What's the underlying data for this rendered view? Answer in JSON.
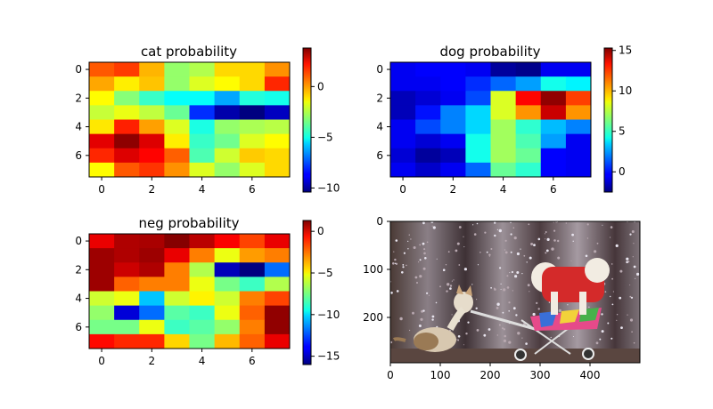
{
  "chart_data": [
    {
      "type": "heatmap",
      "title": "cat probability",
      "colormap": "jet",
      "x_ticks": [
        0,
        2,
        4,
        6
      ],
      "y_ticks": [
        0,
        2,
        4,
        6
      ],
      "colorbar_ticks": [
        0,
        -5,
        -10
      ],
      "vmin": -10.4,
      "vmax": 3.8,
      "values": [
        [
          0.8,
          1.2,
          -0.5,
          -3.0,
          -2.6,
          -1.0,
          -1.0,
          0.0
        ],
        [
          -0.3,
          -1.3,
          -0.7,
          -3.0,
          -2.0,
          -1.5,
          -1.0,
          1.5
        ],
        [
          -1.5,
          -3.2,
          -4.3,
          -5.0,
          -5.0,
          -6.3,
          -4.6,
          -4.8
        ],
        [
          -2.3,
          -1.8,
          -2.4,
          -3.6,
          -8.0,
          -9.8,
          -10.4,
          -9.5
        ],
        [
          -1.2,
          1.6,
          -0.2,
          -2.0,
          -4.7,
          -3.0,
          -2.7,
          -2.5
        ],
        [
          2.4,
          3.6,
          2.5,
          -1.3,
          -4.3,
          -3.5,
          -2.0,
          -1.5
        ],
        [
          1.5,
          2.5,
          2.0,
          0.7,
          -4.0,
          -2.2,
          -0.8,
          -1.0
        ],
        [
          -1.5,
          0.8,
          1.3,
          0.0,
          -2.0,
          -3.0,
          -2.0,
          -1.0
        ]
      ]
    },
    {
      "type": "heatmap",
      "title": "dog probability",
      "colormap": "jet",
      "x_ticks": [
        0,
        2,
        4,
        6
      ],
      "y_ticks": [
        0,
        2,
        4,
        6
      ],
      "colorbar_ticks": [
        15,
        10,
        5,
        0
      ],
      "vmin": -2.5,
      "vmax": 15.3,
      "values": [
        [
          -0.5,
          -0.3,
          -0.3,
          -0.5,
          -2.0,
          -2.3,
          -0.5,
          -0.5
        ],
        [
          -0.5,
          -0.5,
          -0.3,
          0.5,
          1.5,
          2.5,
          4.5,
          4.0
        ],
        [
          -1.5,
          -1.0,
          -0.5,
          1.0,
          8.0,
          13.0,
          15.0,
          12.0
        ],
        [
          -1.5,
          0.0,
          2.0,
          3.5,
          8.0,
          10.5,
          14.0,
          10.5
        ],
        [
          -0.5,
          1.0,
          2.0,
          3.5,
          7.0,
          5.0,
          3.0,
          2.0
        ],
        [
          -0.5,
          -1.0,
          -0.5,
          4.5,
          7.0,
          5.5,
          2.5,
          -0.5
        ],
        [
          -1.0,
          -2.0,
          -1.5,
          4.5,
          7.0,
          6.0,
          -0.3,
          -0.5
        ],
        [
          -0.5,
          -1.2,
          -0.5,
          1.5,
          6.0,
          5.0,
          -0.3,
          -0.5
        ]
      ]
    },
    {
      "type": "heatmap",
      "title": "neg probability",
      "colormap": "jet",
      "x_ticks": [
        0,
        2,
        4,
        6
      ],
      "y_ticks": [
        0,
        2,
        4,
        6
      ],
      "colorbar_ticks": [
        0,
        -5,
        -10,
        -15
      ],
      "vmin": -16.0,
      "vmax": 1.3,
      "values": [
        [
          -0.5,
          0.5,
          0.6,
          1.2,
          0.3,
          -0.8,
          -2.0,
          -0.5
        ],
        [
          0.8,
          0.5,
          0.8,
          -0.5,
          -3.0,
          -5.5,
          -3.5,
          -3.0
        ],
        [
          0.8,
          0.0,
          0.5,
          -3.0,
          -6.5,
          -15.0,
          -16.0,
          -12.0
        ],
        [
          0.8,
          -2.5,
          -3.0,
          -3.0,
          -5.5,
          -7.5,
          -8.5,
          -6.5
        ],
        [
          -6.0,
          -5.5,
          -10.5,
          -6.0,
          -5.0,
          -6.0,
          -3.0,
          -2.0
        ],
        [
          -7.0,
          -14.5,
          -12.0,
          -8.0,
          -8.5,
          -5.5,
          -2.5,
          1.0
        ],
        [
          -7.5,
          -7.5,
          -5.5,
          -8.5,
          -8.0,
          -7.0,
          -3.0,
          1.0
        ],
        [
          -1.0,
          -1.5,
          -1.5,
          -4.5,
          -7.5,
          -4.0,
          -2.5,
          -0.5
        ]
      ]
    },
    {
      "type": "image",
      "x_ticks": [
        0,
        100,
        200,
        300,
        400
      ],
      "y_ticks": [
        0,
        100,
        200
      ],
      "x_range": [
        0,
        500
      ],
      "y_range": [
        0,
        300
      ]
    }
  ]
}
